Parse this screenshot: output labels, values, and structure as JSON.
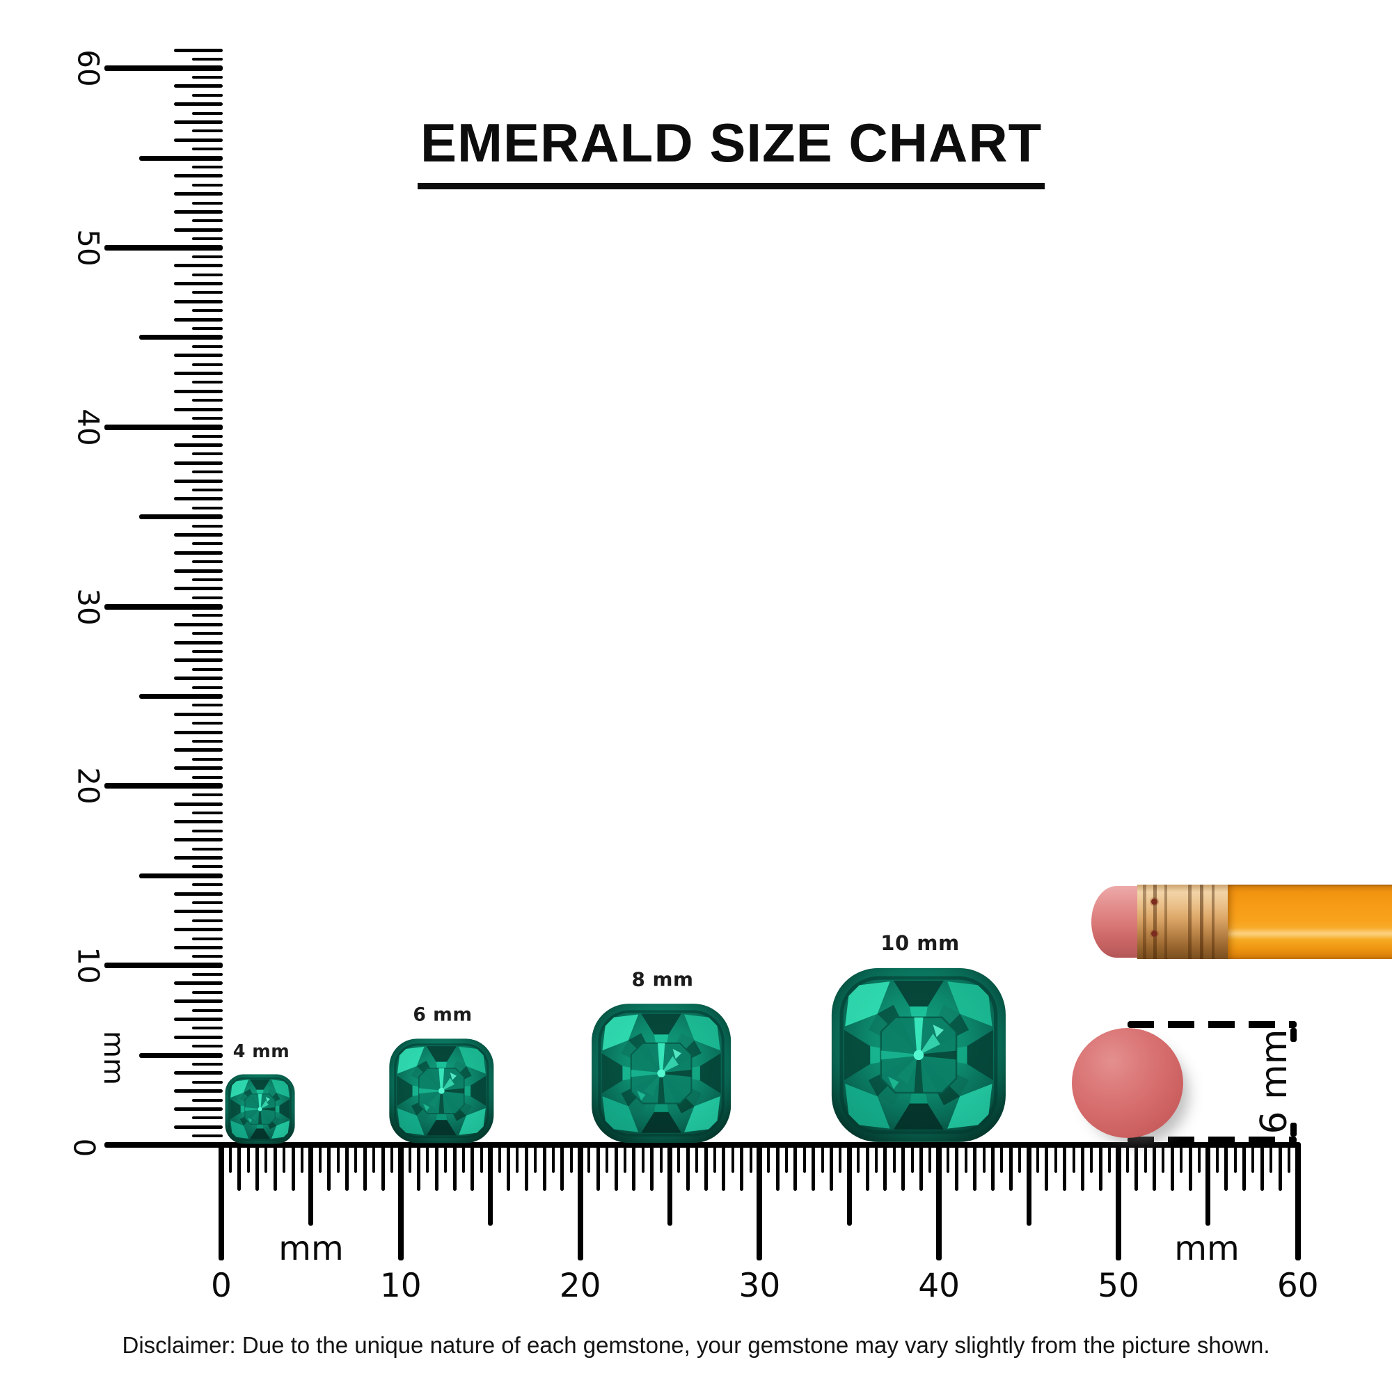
{
  "title": "EMERALD SIZE CHART",
  "disclaimer": "Disclaimer: Due to the unique nature of each gemstone, your gemstone may vary slightly from the picture shown.",
  "ruler_left": {
    "orientation": "vertical",
    "unit": "mm",
    "zero_label": "0",
    "major_labels": [
      "60",
      "50",
      "40",
      "30",
      "20",
      "10"
    ],
    "range_mm": [
      0,
      60
    ]
  },
  "ruler_bottom": {
    "orientation": "horizontal",
    "unit_labels": [
      "mm",
      "mm"
    ],
    "major_labels": [
      "0",
      "10",
      "20",
      "30",
      "40",
      "50",
      "60"
    ],
    "range_mm": [
      0,
      60
    ]
  },
  "gems": {
    "cut": "cushion",
    "stone": "emerald",
    "items": [
      {
        "label": "4 mm",
        "size_mm": 4
      },
      {
        "label": "6 mm",
        "size_mm": 6
      },
      {
        "label": "8 mm",
        "size_mm": 8
      },
      {
        "label": "10 mm",
        "size_mm": 10
      }
    ]
  },
  "eraser_comparison": {
    "diameter_label": "6 mm",
    "diameter_mm": 6
  },
  "colors": {
    "ink": "#000000",
    "emerald_bright": "#35e6ba",
    "emerald_mid": "#0d8a6e",
    "emerald_dark": "#053f34",
    "eraser_pink": "#d56b6b",
    "pencil_orange": "#f79c16",
    "ferrule_gold": "#dca768"
  }
}
